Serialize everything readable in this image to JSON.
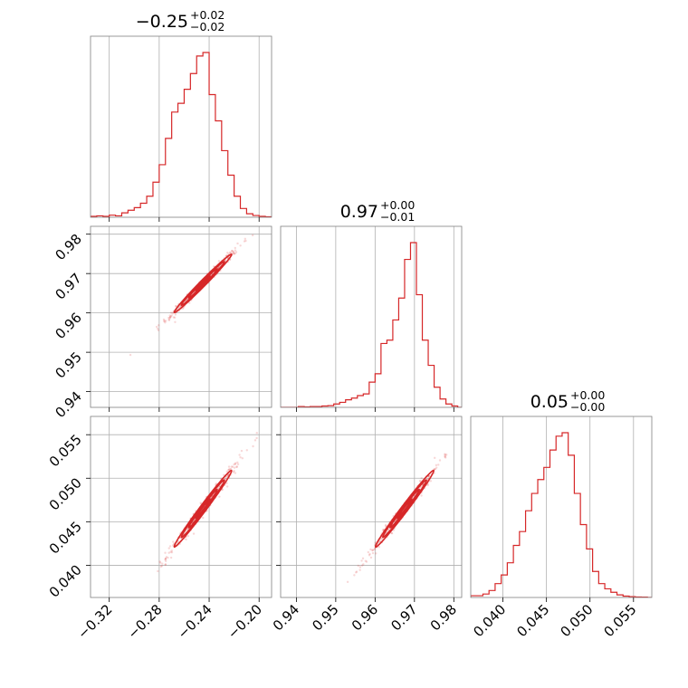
{
  "chart_data": {
    "type": "corner",
    "color": "#d62728",
    "parameters": [
      {
        "title_value": "−0.25",
        "title_plus": "+0.02",
        "title_minus": "−0.02",
        "center": -0.245,
        "sigma": 0.0115,
        "range": [
          -0.335,
          -0.19
        ],
        "ticks": [
          -0.32,
          -0.28,
          -0.24,
          -0.2
        ],
        "tick_labels": [
          "−0.32",
          "−0.28",
          "−0.24",
          "−0.20"
        ],
        "hist_x": [
          -0.335,
          -0.33,
          -0.325,
          -0.32,
          -0.315,
          -0.31,
          -0.305,
          -0.3,
          -0.295,
          -0.29,
          -0.285,
          -0.28,
          -0.275,
          -0.27,
          -0.265,
          -0.26,
          -0.255,
          -0.25,
          -0.245,
          -0.24,
          -0.235,
          -0.23,
          -0.225,
          -0.22,
          -0.215,
          -0.21,
          -0.205,
          -0.2,
          -0.195,
          -0.19
        ],
        "hist_y": [
          0.005,
          0.008,
          0.005,
          0.012,
          0.008,
          0.025,
          0.04,
          0.055,
          0.08,
          0.12,
          0.2,
          0.3,
          0.45,
          0.6,
          0.65,
          0.73,
          0.82,
          0.92,
          0.94,
          0.7,
          0.55,
          0.38,
          0.24,
          0.12,
          0.05,
          0.02,
          0.01,
          0.005,
          0.003,
          0.0
        ]
      },
      {
        "title_value": "0.97",
        "title_plus": "+0.00",
        "title_minus": "−0.01",
        "center": 0.9675,
        "sigma": 0.0037,
        "range": [
          0.936,
          0.982
        ],
        "ticks": [
          0.94,
          0.95,
          0.96,
          0.97,
          0.98
        ],
        "tick_labels": [
          "0.94",
          "0.95",
          "0.96",
          "0.97",
          "0.98"
        ],
        "hist_x": [
          0.936,
          0.9375,
          0.939,
          0.9405,
          0.942,
          0.9435,
          0.945,
          0.9465,
          0.948,
          0.9495,
          0.951,
          0.9525,
          0.954,
          0.9555,
          0.957,
          0.9585,
          0.96,
          0.9615,
          0.963,
          0.9645,
          0.966,
          0.9675,
          0.969,
          0.9705,
          0.972,
          0.9735,
          0.975,
          0.9765,
          0.978,
          0.9795,
          0.981
        ],
        "hist_y": [
          0.0,
          0.0,
          0.0,
          0.005,
          0.003,
          0.005,
          0.005,
          0.008,
          0.01,
          0.02,
          0.03,
          0.045,
          0.055,
          0.07,
          0.08,
          0.15,
          0.2,
          0.38,
          0.4,
          0.52,
          0.65,
          0.88,
          0.98,
          0.67,
          0.4,
          0.25,
          0.12,
          0.05,
          0.02,
          0.008,
          0.0
        ]
      },
      {
        "title_value": "0.05",
        "title_plus": "+0.00",
        "title_minus": "−0.00",
        "center": 0.0465,
        "sigma": 0.0022,
        "range": [
          0.0363,
          0.0571
        ],
        "ticks": [
          0.04,
          0.045,
          0.05,
          0.055
        ],
        "tick_labels": [
          "0.040",
          "0.045",
          "0.050",
          "0.055"
        ],
        "hist_x": [
          0.0363,
          0.037,
          0.0377,
          0.0384,
          0.0391,
          0.0398,
          0.0405,
          0.0412,
          0.0419,
          0.0426,
          0.0433,
          0.044,
          0.0447,
          0.0454,
          0.0461,
          0.0468,
          0.0475,
          0.0482,
          0.0489,
          0.0496,
          0.0503,
          0.051,
          0.0517,
          0.0524,
          0.0531,
          0.0538,
          0.0545,
          0.0552,
          0.0559,
          0.0566
        ],
        "hist_y": [
          0.01,
          0.01,
          0.02,
          0.04,
          0.08,
          0.13,
          0.2,
          0.3,
          0.38,
          0.5,
          0.6,
          0.68,
          0.75,
          0.85,
          0.93,
          0.95,
          0.82,
          0.6,
          0.42,
          0.28,
          0.15,
          0.08,
          0.05,
          0.03,
          0.015,
          0.008,
          0.005,
          0.003,
          0.002,
          0.0
        ]
      }
    ],
    "correlations": {
      "0_1": 0.99,
      "0_2": 0.99,
      "1_2": 0.99
    },
    "grid": true
  }
}
